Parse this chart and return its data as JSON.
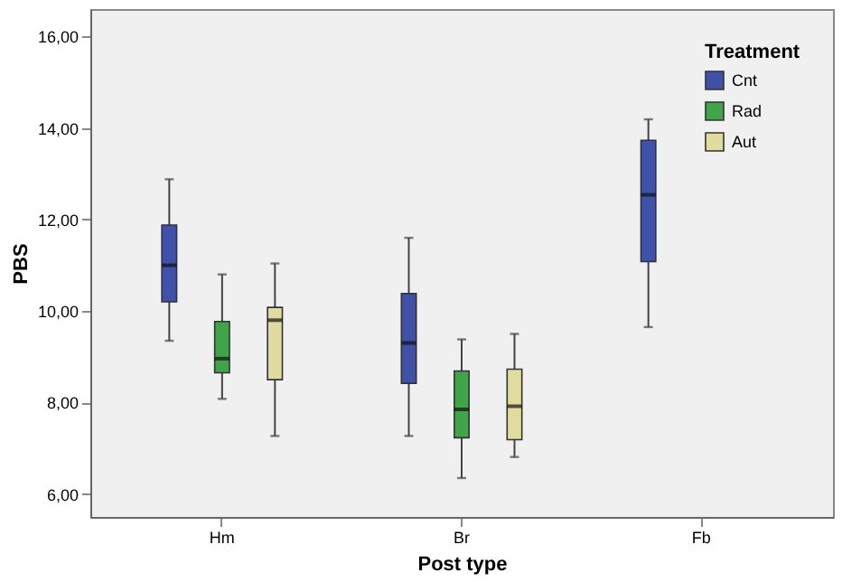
{
  "chart_data": {
    "type": "box",
    "xlabel": "Post type",
    "ylabel": "PBS",
    "legend_title": "Treatment",
    "categories": [
      "Hm",
      "Br",
      "Fb"
    ],
    "series": [
      {
        "name": "Cnt",
        "color": "#3f51a8",
        "boxes": [
          {
            "low": 9.35,
            "q1": 10.2,
            "median": 11.0,
            "q3": 11.88,
            "high": 12.88
          },
          {
            "low": 7.27,
            "q1": 8.42,
            "median": 9.3,
            "q3": 10.38,
            "high": 11.6
          },
          {
            "low": 9.65,
            "q1": 11.08,
            "median": 12.54,
            "q3": 13.73,
            "high": 14.19
          }
        ]
      },
      {
        "name": "Rad",
        "color": "#3fa548",
        "boxes": [
          {
            "low": 8.08,
            "q1": 8.65,
            "median": 8.96,
            "q3": 9.77,
            "high": 10.8
          },
          {
            "low": 6.35,
            "q1": 7.23,
            "median": 7.85,
            "q3": 8.69,
            "high": 9.38
          },
          null
        ]
      },
      {
        "name": "Aut",
        "color": "#e0dca0",
        "boxes": [
          {
            "low": 7.27,
            "q1": 8.5,
            "median": 9.8,
            "q3": 10.08,
            "high": 11.04
          },
          {
            "low": 6.81,
            "q1": 7.19,
            "median": 7.92,
            "q3": 8.73,
            "high": 9.5
          },
          null
        ]
      }
    ],
    "ylim": [
      5.5,
      16.6
    ],
    "yticks": [
      {
        "value": 6,
        "label": "6,00"
      },
      {
        "value": 8,
        "label": "8,00"
      },
      {
        "value": 10,
        "label": "10,00"
      },
      {
        "value": 12,
        "label": "12,00"
      },
      {
        "value": 14,
        "label": "14,00"
      },
      {
        "value": 16,
        "label": "16,00"
      }
    ],
    "grid": false,
    "legend": "top right"
  }
}
